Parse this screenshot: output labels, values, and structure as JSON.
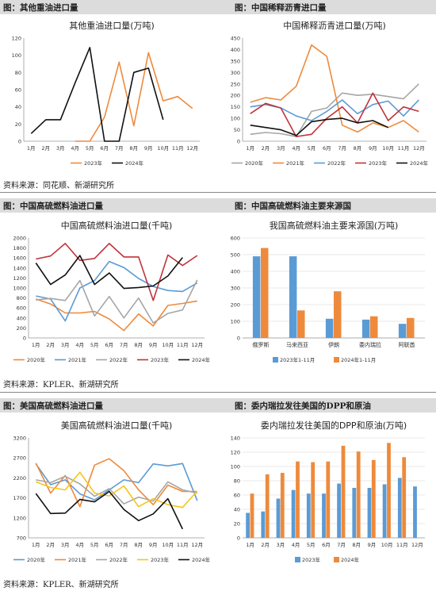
{
  "headers": [
    {
      "left": "图：其他重油进口量",
      "right": "图：中国稀释沥青进口量"
    },
    {
      "left": "图：中国高硫燃料油进口量",
      "right": "图：中国高硫燃料油主要来源国"
    },
    {
      "left": "图：美国高硫燃料油进口量",
      "right": "图：委内瑞拉发往美国的DPP和原油"
    }
  ],
  "sources": [
    "资料来源：同花顺、新湖研究所",
    "资料来源：KPLER、新湖研究所",
    "资料来源：KPLER、新湖研究所"
  ],
  "colors": {
    "orange": "#ee8a3c",
    "black": "#111111",
    "gray": "#a6a6a6",
    "blue": "#5b9bd5",
    "red": "#c0343c",
    "yellow": "#f5c518"
  },
  "chart_data": [
    {
      "id": "c1",
      "type": "line",
      "title": "其他重油进口量(万吨)",
      "categories": [
        "1月",
        "2月",
        "3月",
        "4月",
        "5月",
        "6月",
        "7月",
        "8月",
        "9月",
        "10月",
        "11月",
        "12月"
      ],
      "ylim": [
        0,
        120
      ],
      "yticks": [
        0,
        20,
        40,
        60,
        80,
        100,
        120
      ],
      "legend_position": "bottom",
      "series": [
        {
          "name": "2023年",
          "color": "orange",
          "values": [
            null,
            null,
            null,
            0,
            0,
            28,
            92,
            18,
            103,
            47,
            52,
            38
          ]
        },
        {
          "name": "2024年",
          "color": "black",
          "values": [
            9,
            25,
            25,
            68,
            109,
            0,
            0,
            80,
            85,
            25,
            null,
            null
          ]
        }
      ]
    },
    {
      "id": "c2",
      "type": "line",
      "title": "中国稀释沥青进口量(万吨)",
      "categories": [
        "1月",
        "2月",
        "3月",
        "4月",
        "5月",
        "6月",
        "7月",
        "8月",
        "9月",
        "10月",
        "11月",
        "12月"
      ],
      "ylim": [
        0,
        450
      ],
      "yticks": [
        0,
        50,
        100,
        150,
        200,
        250,
        300,
        350,
        400,
        450
      ],
      "legend_position": "bottom",
      "series": [
        {
          "name": "2020年",
          "color": "gray",
          "values": [
            30,
            38,
            33,
            20,
            130,
            145,
            210,
            200,
            205,
            195,
            185,
            250
          ]
        },
        {
          "name": "2021年",
          "color": "orange",
          "values": [
            170,
            190,
            180,
            240,
            420,
            370,
            70,
            40,
            80,
            60,
            90,
            40
          ]
        },
        {
          "name": "2022年",
          "color": "blue",
          "values": [
            150,
            160,
            145,
            110,
            90,
            130,
            180,
            120,
            160,
            175,
            110,
            180
          ]
        },
        {
          "name": "2023年",
          "color": "red",
          "values": [
            120,
            165,
            145,
            20,
            30,
            100,
            150,
            80,
            210,
            90,
            150,
            130
          ]
        },
        {
          "name": "2024年",
          "color": "black",
          "values": [
            70,
            60,
            50,
            25,
            85,
            95,
            100,
            80,
            90,
            60,
            null,
            null
          ]
        }
      ]
    },
    {
      "id": "c3",
      "type": "line",
      "title": "中国高硫燃料油进口量(千吨)",
      "categories": [
        "1月",
        "2月",
        "3月",
        "4月",
        "5月",
        "6月",
        "7月",
        "8月",
        "9月",
        "10月",
        "11月",
        "12月"
      ],
      "ylim": [
        0,
        2000
      ],
      "yticks": [
        0,
        200,
        400,
        600,
        800,
        1000,
        1200,
        1400,
        1600,
        1800,
        2000
      ],
      "legend_position": "bottom",
      "series": [
        {
          "name": "2020年",
          "color": "orange",
          "values": [
            780,
            680,
            500,
            500,
            530,
            380,
            150,
            480,
            240,
            650,
            690,
            740
          ]
        },
        {
          "name": "2021年",
          "color": "blue",
          "values": [
            840,
            780,
            340,
            1000,
            1150,
            1530,
            1410,
            1190,
            1030,
            950,
            930,
            1100
          ]
        },
        {
          "name": "2022年",
          "color": "gray",
          "values": [
            760,
            790,
            750,
            1150,
            440,
            830,
            400,
            800,
            300,
            490,
            560,
            1160
          ]
        },
        {
          "name": "2023年",
          "color": "red",
          "values": [
            1580,
            1640,
            1890,
            1550,
            1590,
            1890,
            1620,
            1620,
            750,
            1660,
            1450,
            1650
          ]
        },
        {
          "name": "2024年",
          "color": "black",
          "values": [
            1500,
            1070,
            1260,
            1650,
            1070,
            1300,
            990,
            1010,
            1040,
            1240,
            1610,
            null
          ]
        }
      ]
    },
    {
      "id": "c4",
      "type": "bar",
      "title": "我国高硫燃料油主要来源国(万吨)",
      "categories": [
        "俄罗斯",
        "马来西亚",
        "伊朗",
        "委内瑞拉",
        "阿联酋"
      ],
      "ylim": [
        0,
        600
      ],
      "yticks": [
        0,
        100,
        200,
        300,
        400,
        500,
        600
      ],
      "legend_position": "bottom",
      "series": [
        {
          "name": "2023年1-11月",
          "color": "blue",
          "values": [
            490,
            490,
            115,
            110,
            85
          ]
        },
        {
          "name": "2024年1-11月",
          "color": "orange",
          "values": [
            540,
            165,
            280,
            130,
            120
          ]
        }
      ]
    },
    {
      "id": "c5",
      "type": "line",
      "title": "美国高硫燃料油进口量(千吨)",
      "categories": [
        "1月",
        "2月",
        "3月",
        "4月",
        "5月",
        "6月",
        "7月",
        "8月",
        "9月",
        "10月",
        "11月",
        "12月"
      ],
      "ylim": [
        700,
        3200
      ],
      "yticks": [
        700,
        1200,
        1700,
        2200,
        2700,
        3200
      ],
      "legend_position": "bottom",
      "series": [
        {
          "name": "2020年",
          "color": "blue",
          "values": [
            2550,
            2030,
            2150,
            1800,
            1650,
            1900,
            2150,
            2080,
            2550,
            2500,
            2560,
            1630
          ]
        },
        {
          "name": "2021年",
          "color": "orange",
          "values": [
            2570,
            1820,
            2260,
            1480,
            2520,
            2680,
            2380,
            1900,
            1530,
            2020,
            1860,
            1860
          ]
        },
        {
          "name": "2022年",
          "color": "gray",
          "values": [
            2150,
            2080,
            2240,
            2050,
            1740,
            1930,
            1550,
            1720,
            1620,
            2100,
            1900,
            1820
          ]
        },
        {
          "name": "2023年",
          "color": "yellow",
          "values": [
            2100,
            1960,
            1900,
            2340,
            1820,
            1750,
            2000,
            1480,
            1680,
            1530,
            1460,
            1870
          ]
        },
        {
          "name": "2024年",
          "color": "black",
          "values": [
            1810,
            1310,
            1320,
            1660,
            1600,
            1860,
            1410,
            1130,
            1300,
            1680,
            920,
            null
          ]
        }
      ]
    },
    {
      "id": "c6",
      "type": "bar",
      "title": "委内瑞拉发往美国的DPP和原油(万吨)",
      "categories": [
        "1月",
        "2月",
        "3月",
        "4月",
        "5月",
        "6月",
        "7月",
        "8月",
        "9月",
        "10月",
        "11月",
        "12月"
      ],
      "ylim": [
        0,
        140
      ],
      "yticks": [
        0,
        20,
        40,
        60,
        80,
        100,
        120,
        140
      ],
      "legend_position": "bottom",
      "series": [
        {
          "name": "2023年",
          "color": "blue",
          "values": [
            35,
            37,
            55,
            67,
            62,
            62,
            76,
            70,
            70,
            75,
            84,
            72
          ]
        },
        {
          "name": "2024年",
          "color": "orange",
          "values": [
            62,
            89,
            91,
            107,
            106,
            107,
            129,
            121,
            109,
            133,
            113,
            null
          ]
        }
      ]
    }
  ]
}
